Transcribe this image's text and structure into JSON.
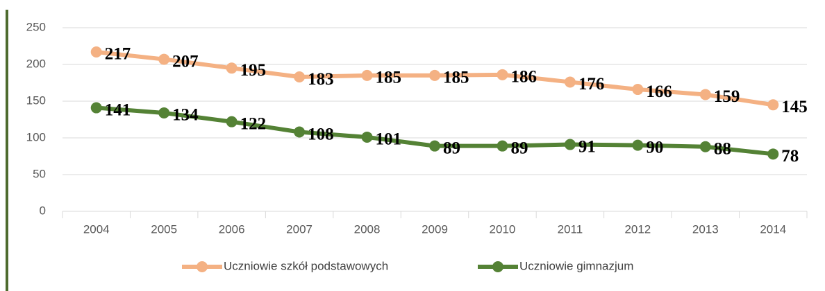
{
  "chart_data": {
    "type": "line",
    "categories": [
      "2004",
      "2005",
      "2006",
      "2007",
      "2008",
      "2009",
      "2010",
      "2011",
      "2012",
      "2013",
      "2014"
    ],
    "series": [
      {
        "name": "Uczniowie szkół podstawowych",
        "color": "#f4b183",
        "values": [
          217,
          207,
          195,
          183,
          185,
          185,
          186,
          176,
          166,
          159,
          145
        ]
      },
      {
        "name": "Uczniowie gimnazjum",
        "color": "#548235",
        "values": [
          141,
          134,
          122,
          108,
          101,
          89,
          89,
          91,
          90,
          88,
          78
        ]
      }
    ],
    "ylim": [
      0,
      250
    ],
    "yticks": [
      0,
      50,
      100,
      150,
      200,
      250
    ],
    "grid": true,
    "legend": "bottom"
  }
}
